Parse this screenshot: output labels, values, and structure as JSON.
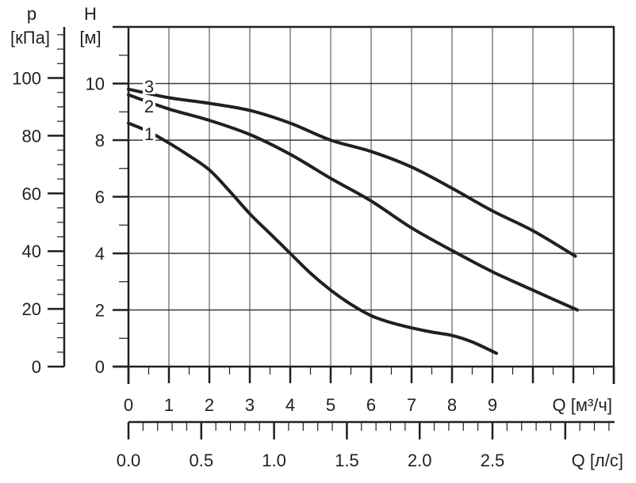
{
  "chart_data": {
    "type": "line",
    "title": "",
    "xlabel": "Q [м³/ч]",
    "x2label": "Q [л/с]",
    "ylabel": "H [м]",
    "y2label": "p [кПа]",
    "xlim": [
      0,
      12
    ],
    "ylim": [
      0,
      12
    ],
    "x_ticks": [
      0,
      1,
      2,
      3,
      4,
      5,
      6,
      7,
      8,
      9
    ],
    "x2_ticks": [
      "0.0",
      "0.5",
      "1.0",
      "1.5",
      "2.0",
      "2.5",
      "3.0"
    ],
    "x2_tick_labels_shown": [
      "0.0",
      "0.5",
      "1.0",
      "1.5",
      "2.0",
      "2.5"
    ],
    "y_ticks": [
      0,
      2,
      4,
      6,
      8,
      10
    ],
    "y2_ticks": [
      0,
      20,
      40,
      60,
      80,
      100
    ],
    "grid": true,
    "legend": "inline curve labels 1, 2, 3 at left",
    "series": [
      {
        "name": "1",
        "x": [
          0,
          0.5,
          1,
          1.5,
          2,
          2.5,
          3,
          3.5,
          4,
          4.5,
          5,
          5.5,
          6,
          6.5,
          7,
          7.5,
          8,
          8.5,
          9.1
        ],
        "y": [
          8.6,
          8.3,
          7.9,
          7.45,
          6.95,
          6.2,
          5.4,
          4.7,
          4.0,
          3.3,
          2.7,
          2.2,
          1.8,
          1.55,
          1.37,
          1.22,
          1.1,
          0.87,
          0.47
        ]
      },
      {
        "name": "2",
        "x": [
          0,
          1,
          2,
          3,
          4,
          5,
          6,
          7,
          8,
          9,
          10,
          11.1
        ],
        "y": [
          9.6,
          9.1,
          8.7,
          8.2,
          7.5,
          6.65,
          5.85,
          4.9,
          4.1,
          3.35,
          2.7,
          2.0
        ]
      },
      {
        "name": "3",
        "x": [
          0,
          1,
          2,
          3,
          4,
          5,
          6,
          7,
          8,
          9,
          10,
          11.05
        ],
        "y": [
          9.8,
          9.5,
          9.3,
          9.05,
          8.6,
          8.0,
          7.6,
          7.05,
          6.3,
          5.5,
          4.8,
          3.9
        ]
      }
    ]
  },
  "axes": {
    "p_label_top": "p",
    "p_label_unit": "[кПа]",
    "h_label_top": "H",
    "h_label_unit": "[м]",
    "q_m3h_label": "Q [м³/ч]",
    "q_ls_label": "Q [л/с]"
  },
  "colors": {
    "curve": "#231f20",
    "axis": "#231f20",
    "grid_h": "#3a3a3a",
    "grid_v": "#888888",
    "text": "#231f20"
  }
}
